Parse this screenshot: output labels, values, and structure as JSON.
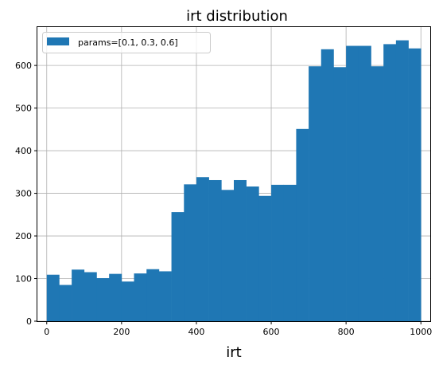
{
  "chart_data": {
    "type": "bar",
    "title": "irt distribution",
    "xlabel": "irt",
    "ylabel": "",
    "xlim": [
      -25,
      1025
    ],
    "ylim": [
      0,
      690
    ],
    "xticks": [
      0,
      200,
      400,
      600,
      800,
      1000
    ],
    "yticks": [
      0,
      100,
      200,
      300,
      400,
      500,
      600
    ],
    "grid": true,
    "legend_position": "top-left",
    "bar_color": "#1f77b4",
    "series": [
      {
        "name": "params=[0.1, 0.3, 0.6]",
        "bin_edges": [
          0,
          33.3,
          66.7,
          100,
          133.3,
          166.7,
          200,
          233.3,
          266.7,
          300,
          333.3,
          366.7,
          400,
          433.3,
          466.7,
          500,
          533.3,
          566.7,
          600,
          633.3,
          666.7,
          700,
          733.3,
          766.7,
          800,
          833.3,
          866.7,
          900,
          933.3,
          966.7,
          1000
        ],
        "values": [
          109,
          85,
          121,
          115,
          101,
          111,
          93,
          112,
          122,
          117,
          256,
          321,
          338,
          331,
          308,
          331,
          316,
          294,
          320,
          320,
          451,
          598,
          638,
          596,
          646,
          646,
          598,
          650,
          659,
          640
        ]
      }
    ]
  }
}
